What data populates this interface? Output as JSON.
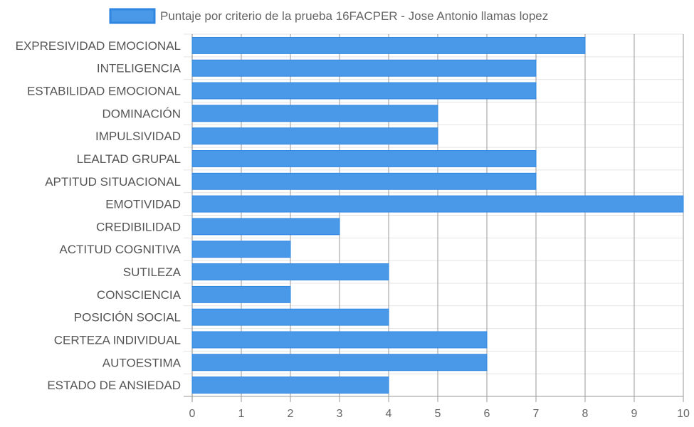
{
  "chart_data": {
    "type": "bar",
    "orientation": "horizontal",
    "series": [
      {
        "name": "Puntaje por criterio de la prueba 16FACPER - Jose Antonio llamas lopez",
        "color": "#4A99E9",
        "values": [
          8,
          7,
          7,
          5,
          5,
          7,
          7,
          10,
          3,
          2,
          4,
          2,
          4,
          6,
          6,
          4
        ]
      }
    ],
    "categories": [
      "EXPRESIVIDAD EMOCIONAL",
      "INTELIGENCIA",
      "ESTABILIDAD EMOCIONAL",
      "DOMINACIÓN",
      "IMPULSIVIDAD",
      "LEALTAD GRUPAL",
      "APTITUD SITUACIONAL",
      "EMOTIVIDAD",
      "CREDIBILIDAD",
      "ACTITUD COGNITIVA",
      "SUTILEZA",
      "CONSCIENCIA",
      "POSICIÓN SOCIAL",
      "CERTEZA INDIVIDUAL",
      "AUTOESTIMA",
      "ESTADO DE ANSIEDAD"
    ],
    "x_ticks": [
      "0",
      "1",
      "2",
      "3",
      "4",
      "5",
      "6",
      "7",
      "8",
      "9",
      "10"
    ],
    "xlim": [
      0,
      10
    ],
    "grid": true,
    "legend_position": "top",
    "bar_color": "#4A99E9",
    "bar_border_color": "#2F86E0"
  }
}
